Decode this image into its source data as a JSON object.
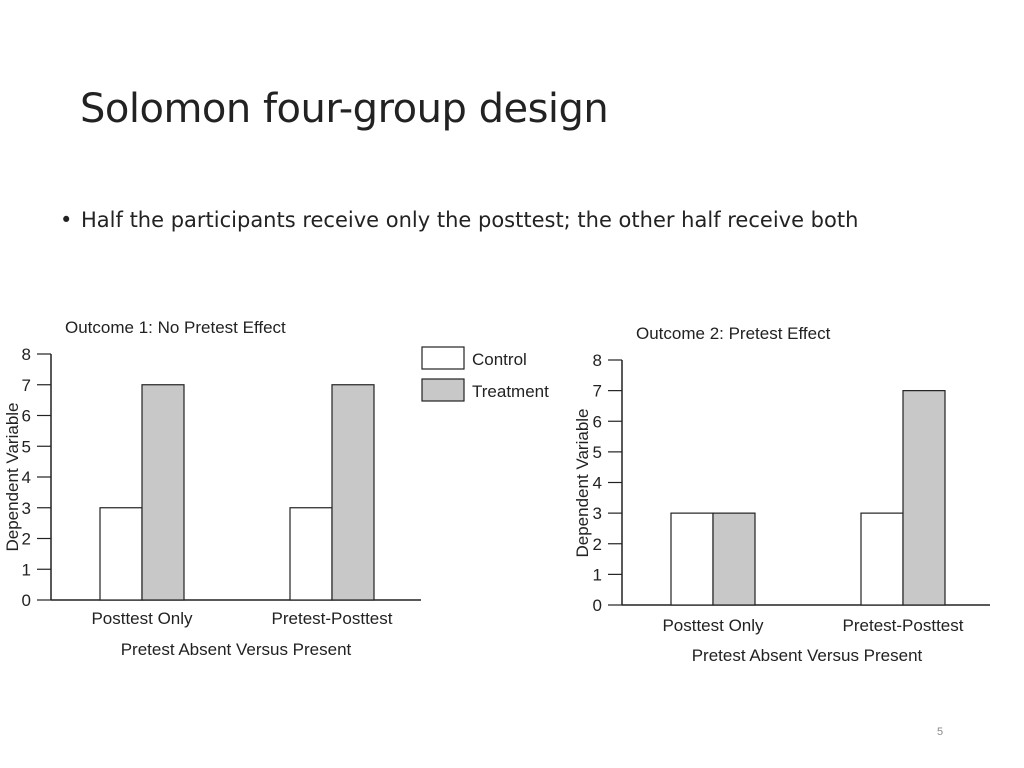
{
  "slide": {
    "title": "Solomon four-group design",
    "bullets": [
      "Half the participants receive only the posttest; the other half receive both"
    ],
    "slide_number": "5"
  },
  "colors": {
    "control": "#ffffff",
    "treatment": "#c8c8c8",
    "stroke": "#222222"
  },
  "legend": {
    "control_label": "Control",
    "treatment_label": "Treatment"
  },
  "chart_data": [
    {
      "type": "bar",
      "title": "Outcome 1: No Pretest Effect",
      "xlabel": "Pretest Absent Versus Present",
      "ylabel": "Dependent Variable",
      "categories": [
        "Posttest Only",
        "Pretest-Posttest"
      ],
      "series": [
        {
          "name": "Control",
          "values": [
            3,
            3
          ]
        },
        {
          "name": "Treatment",
          "values": [
            7,
            7
          ]
        }
      ],
      "ylim": [
        0,
        8
      ],
      "yticks": [
        0,
        1,
        2,
        3,
        4,
        5,
        6,
        7,
        8
      ],
      "legend_position": "right",
      "grid": false
    },
    {
      "type": "bar",
      "title": "Outcome 2: Pretest Effect",
      "xlabel": "Pretest Absent Versus Present",
      "ylabel": "Dependent Variable",
      "categories": [
        "Posttest Only",
        "Pretest-Posttest"
      ],
      "series": [
        {
          "name": "Control",
          "values": [
            3,
            3
          ]
        },
        {
          "name": "Treatment",
          "values": [
            3,
            7
          ]
        }
      ],
      "ylim": [
        0,
        8
      ],
      "yticks": [
        0,
        1,
        2,
        3,
        4,
        5,
        6,
        7,
        8
      ],
      "grid": false
    }
  ]
}
